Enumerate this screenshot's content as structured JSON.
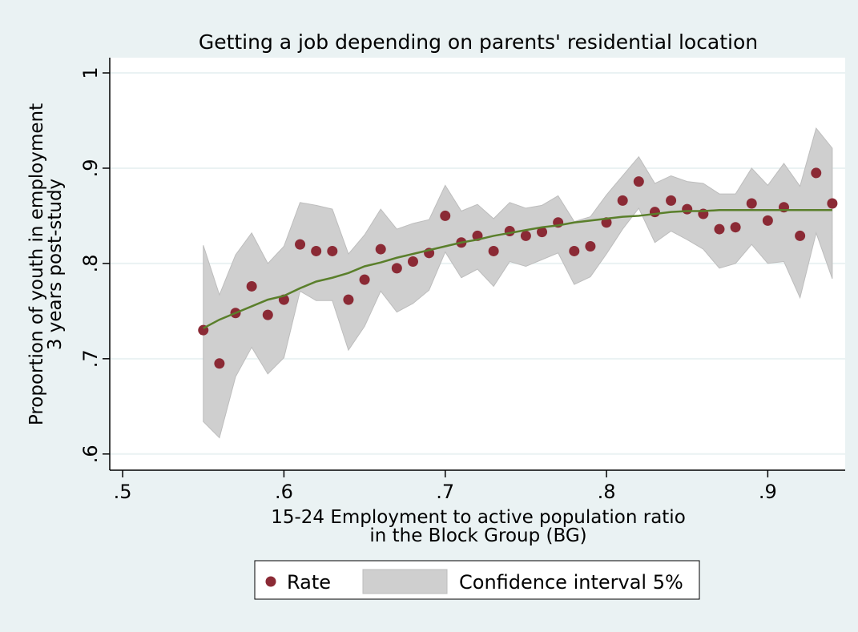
{
  "chart_data": {
    "type": "scatter",
    "title": "Getting a job depending on parents' residential location",
    "x_label": [
      "15-24 Employment to active population ratio",
      "in the Block Group (BG)"
    ],
    "y_label": [
      "Proportion of youth in employment",
      "3 years post-study"
    ],
    "x": [
      0.55,
      0.56,
      0.57,
      0.58,
      0.59,
      0.6,
      0.61,
      0.62,
      0.63,
      0.64,
      0.65,
      0.66,
      0.67,
      0.68,
      0.69,
      0.7,
      0.71,
      0.72,
      0.73,
      0.74,
      0.75,
      0.76,
      0.77,
      0.78,
      0.79,
      0.8,
      0.81,
      0.82,
      0.83,
      0.84,
      0.85,
      0.86,
      0.87,
      0.88,
      0.89,
      0.9,
      0.91,
      0.92,
      0.93,
      0.94
    ],
    "band": {
      "name": "Confidence interval 5%",
      "color": "#cfcfcf",
      "upper": [
        0.819,
        0.767,
        0.809,
        0.832,
        0.8,
        0.818,
        0.864,
        0.861,
        0.857,
        0.81,
        0.83,
        0.857,
        0.836,
        0.842,
        0.846,
        0.882,
        0.855,
        0.862,
        0.847,
        0.864,
        0.858,
        0.861,
        0.871,
        0.844,
        0.849,
        0.872,
        0.892,
        0.912,
        0.884,
        0.892,
        0.886,
        0.884,
        0.873,
        0.873,
        0.9,
        0.882,
        0.905,
        0.881,
        0.942,
        0.921
      ],
      "lower": [
        0.634,
        0.617,
        0.681,
        0.712,
        0.684,
        0.701,
        0.771,
        0.761,
        0.761,
        0.709,
        0.734,
        0.771,
        0.749,
        0.758,
        0.772,
        0.812,
        0.785,
        0.794,
        0.776,
        0.802,
        0.797,
        0.804,
        0.811,
        0.778,
        0.786,
        0.81,
        0.836,
        0.858,
        0.822,
        0.834,
        0.825,
        0.815,
        0.795,
        0.8,
        0.82,
        0.8,
        0.802,
        0.764,
        0.832,
        0.784
      ]
    },
    "series": [
      {
        "name": "Rate",
        "style": "marker",
        "color": "#8b2a35",
        "values": [
          0.73,
          0.695,
          0.748,
          0.776,
          0.746,
          0.762,
          0.82,
          0.813,
          0.813,
          0.762,
          0.783,
          0.815,
          0.795,
          0.802,
          0.811,
          0.85,
          0.822,
          0.829,
          0.813,
          0.834,
          0.829,
          0.833,
          0.843,
          0.813,
          0.818,
          0.843,
          0.866,
          0.886,
          0.854,
          0.866,
          0.857,
          0.852,
          0.836,
          0.838,
          0.863,
          0.845,
          0.859,
          0.829,
          0.895,
          0.863
        ]
      },
      {
        "style": "line",
        "color": "#5a7f2b",
        "values": [
          0.732,
          0.741,
          0.748,
          0.755,
          0.762,
          0.766,
          0.774,
          0.781,
          0.785,
          0.79,
          0.797,
          0.801,
          0.806,
          0.81,
          0.814,
          0.818,
          0.822,
          0.825,
          0.829,
          0.832,
          0.835,
          0.838,
          0.84,
          0.843,
          0.845,
          0.847,
          0.849,
          0.85,
          0.852,
          0.854,
          0.855,
          0.855,
          0.856,
          0.856,
          0.856,
          0.856,
          0.856,
          0.856,
          0.856,
          0.856
        ]
      }
    ],
    "xlim": [
      0.492,
      0.948
    ],
    "ylim": [
      0.583,
      1.016
    ],
    "xticks": [
      {
        "value": 0.5,
        "label": ".5"
      },
      {
        "value": 0.6,
        "label": ".6"
      },
      {
        "value": 0.7,
        "label": ".7"
      },
      {
        "value": 0.8,
        "label": ".8"
      },
      {
        "value": 0.9,
        "label": ".9"
      }
    ],
    "yticks": [
      {
        "value": 0.6,
        "label": ".6"
      },
      {
        "value": 0.7,
        "label": ".7"
      },
      {
        "value": 0.8,
        "label": ".8"
      },
      {
        "value": 0.9,
        "label": ".9"
      },
      {
        "value": 1,
        "label": "1"
      }
    ],
    "grid": true
  }
}
